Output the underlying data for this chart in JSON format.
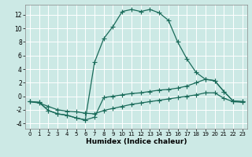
{
  "title": "",
  "xlabel": "Humidex (Indice chaleur)",
  "bg_color": "#cce9e5",
  "grid_color": "#ffffff",
  "line_color": "#1a6b5a",
  "xlim": [
    -0.5,
    23.5
  ],
  "ylim": [
    -4.8,
    13.5
  ],
  "yticks": [
    -4,
    -2,
    0,
    2,
    4,
    6,
    8,
    10,
    12
  ],
  "xticks": [
    0,
    1,
    2,
    3,
    4,
    5,
    6,
    7,
    8,
    9,
    10,
    11,
    12,
    13,
    14,
    15,
    16,
    17,
    18,
    19,
    20,
    21,
    22,
    23
  ],
  "line1_x": [
    0,
    1,
    2,
    3,
    4,
    5,
    6,
    7,
    8,
    9,
    10,
    11,
    12,
    13,
    14,
    15,
    16,
    17,
    18,
    19,
    20,
    21,
    22,
    23
  ],
  "line1_y": [
    -0.8,
    -0.9,
    -2.1,
    -2.6,
    -2.8,
    -3.2,
    -3.5,
    -3.1,
    -0.2,
    0.0,
    0.2,
    0.4,
    0.5,
    0.7,
    0.9,
    1.0,
    1.2,
    1.5,
    2.0,
    2.5,
    2.3,
    0.7,
    -0.7,
    -0.8
  ],
  "line2_x": [
    0,
    1,
    2,
    3,
    4,
    5,
    6,
    7,
    8,
    9,
    10,
    11,
    12,
    13,
    14,
    15,
    16,
    17,
    18,
    19,
    20,
    21,
    22,
    23
  ],
  "line2_y": [
    -0.8,
    -0.9,
    -2.1,
    -2.6,
    -2.8,
    -3.2,
    -3.5,
    5.0,
    8.5,
    10.3,
    12.5,
    12.8,
    12.5,
    12.8,
    12.3,
    11.2,
    8.0,
    5.5,
    3.5,
    2.5,
    2.3,
    0.7,
    -0.7,
    -0.8
  ],
  "line3_x": [
    0,
    1,
    2,
    3,
    4,
    5,
    6,
    7,
    8,
    9,
    10,
    11,
    12,
    13,
    14,
    15,
    16,
    17,
    18,
    19,
    20,
    21,
    22,
    23
  ],
  "line3_y": [
    -0.8,
    -1.0,
    -1.5,
    -2.0,
    -2.2,
    -2.3,
    -2.5,
    -2.6,
    -2.1,
    -1.8,
    -1.5,
    -1.2,
    -1.0,
    -0.8,
    -0.6,
    -0.4,
    -0.2,
    0.0,
    0.2,
    0.5,
    0.5,
    -0.3,
    -0.8,
    -0.9
  ],
  "tick_fontsize": 5.5,
  "xlabel_fontsize": 6.5,
  "marker_size": 2.0,
  "linewidth": 0.9
}
